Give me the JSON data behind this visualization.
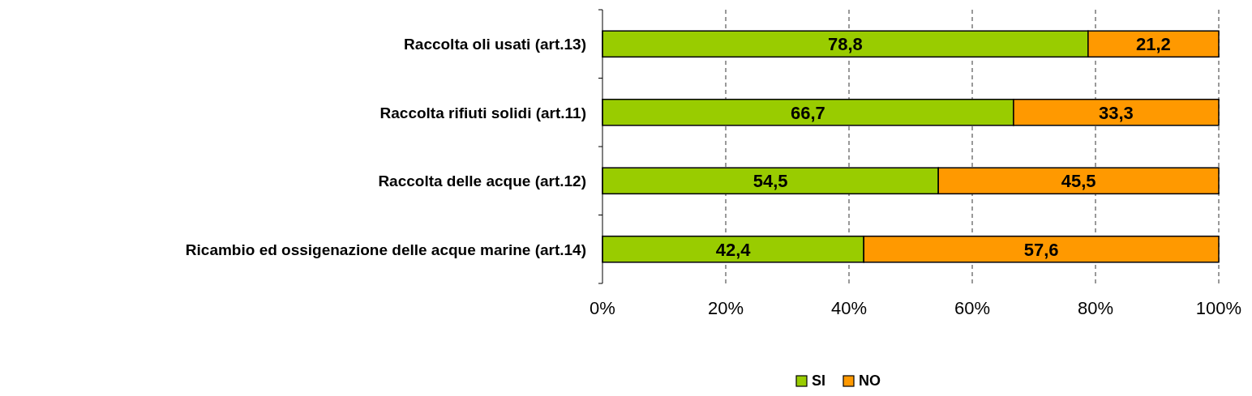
{
  "chart_data": {
    "type": "bar",
    "orientation": "horizontal",
    "stacked": true,
    "categories": [
      "Raccolta oli usati (art.13)",
      "Raccolta rifiuti solidi (art.11)",
      "Raccolta delle acque (art.12)",
      "Ricambio ed ossigenazione delle acque marine (art.14)"
    ],
    "series": [
      {
        "name": "SI",
        "color": "#99cc00",
        "values": [
          78.8,
          66.7,
          54.5,
          42.4
        ],
        "value_labels": [
          "78,8",
          "66,7",
          "54,5",
          "42,4"
        ]
      },
      {
        "name": "NO",
        "color": "#ff9900",
        "values": [
          21.2,
          33.3,
          45.5,
          57.6
        ],
        "value_labels": [
          "21,2",
          "33,3",
          "45,5",
          "57,6"
        ]
      }
    ],
    "xlim": [
      0,
      100
    ],
    "xticks": [
      {
        "value": 0,
        "label": "0%"
      },
      {
        "value": 20,
        "label": "20%"
      },
      {
        "value": 40,
        "label": "40%"
      },
      {
        "value": 60,
        "label": "60%"
      },
      {
        "value": 80,
        "label": "80%"
      },
      {
        "value": 100,
        "label": "100%"
      }
    ],
    "grid": "x",
    "legend": "bottom"
  }
}
